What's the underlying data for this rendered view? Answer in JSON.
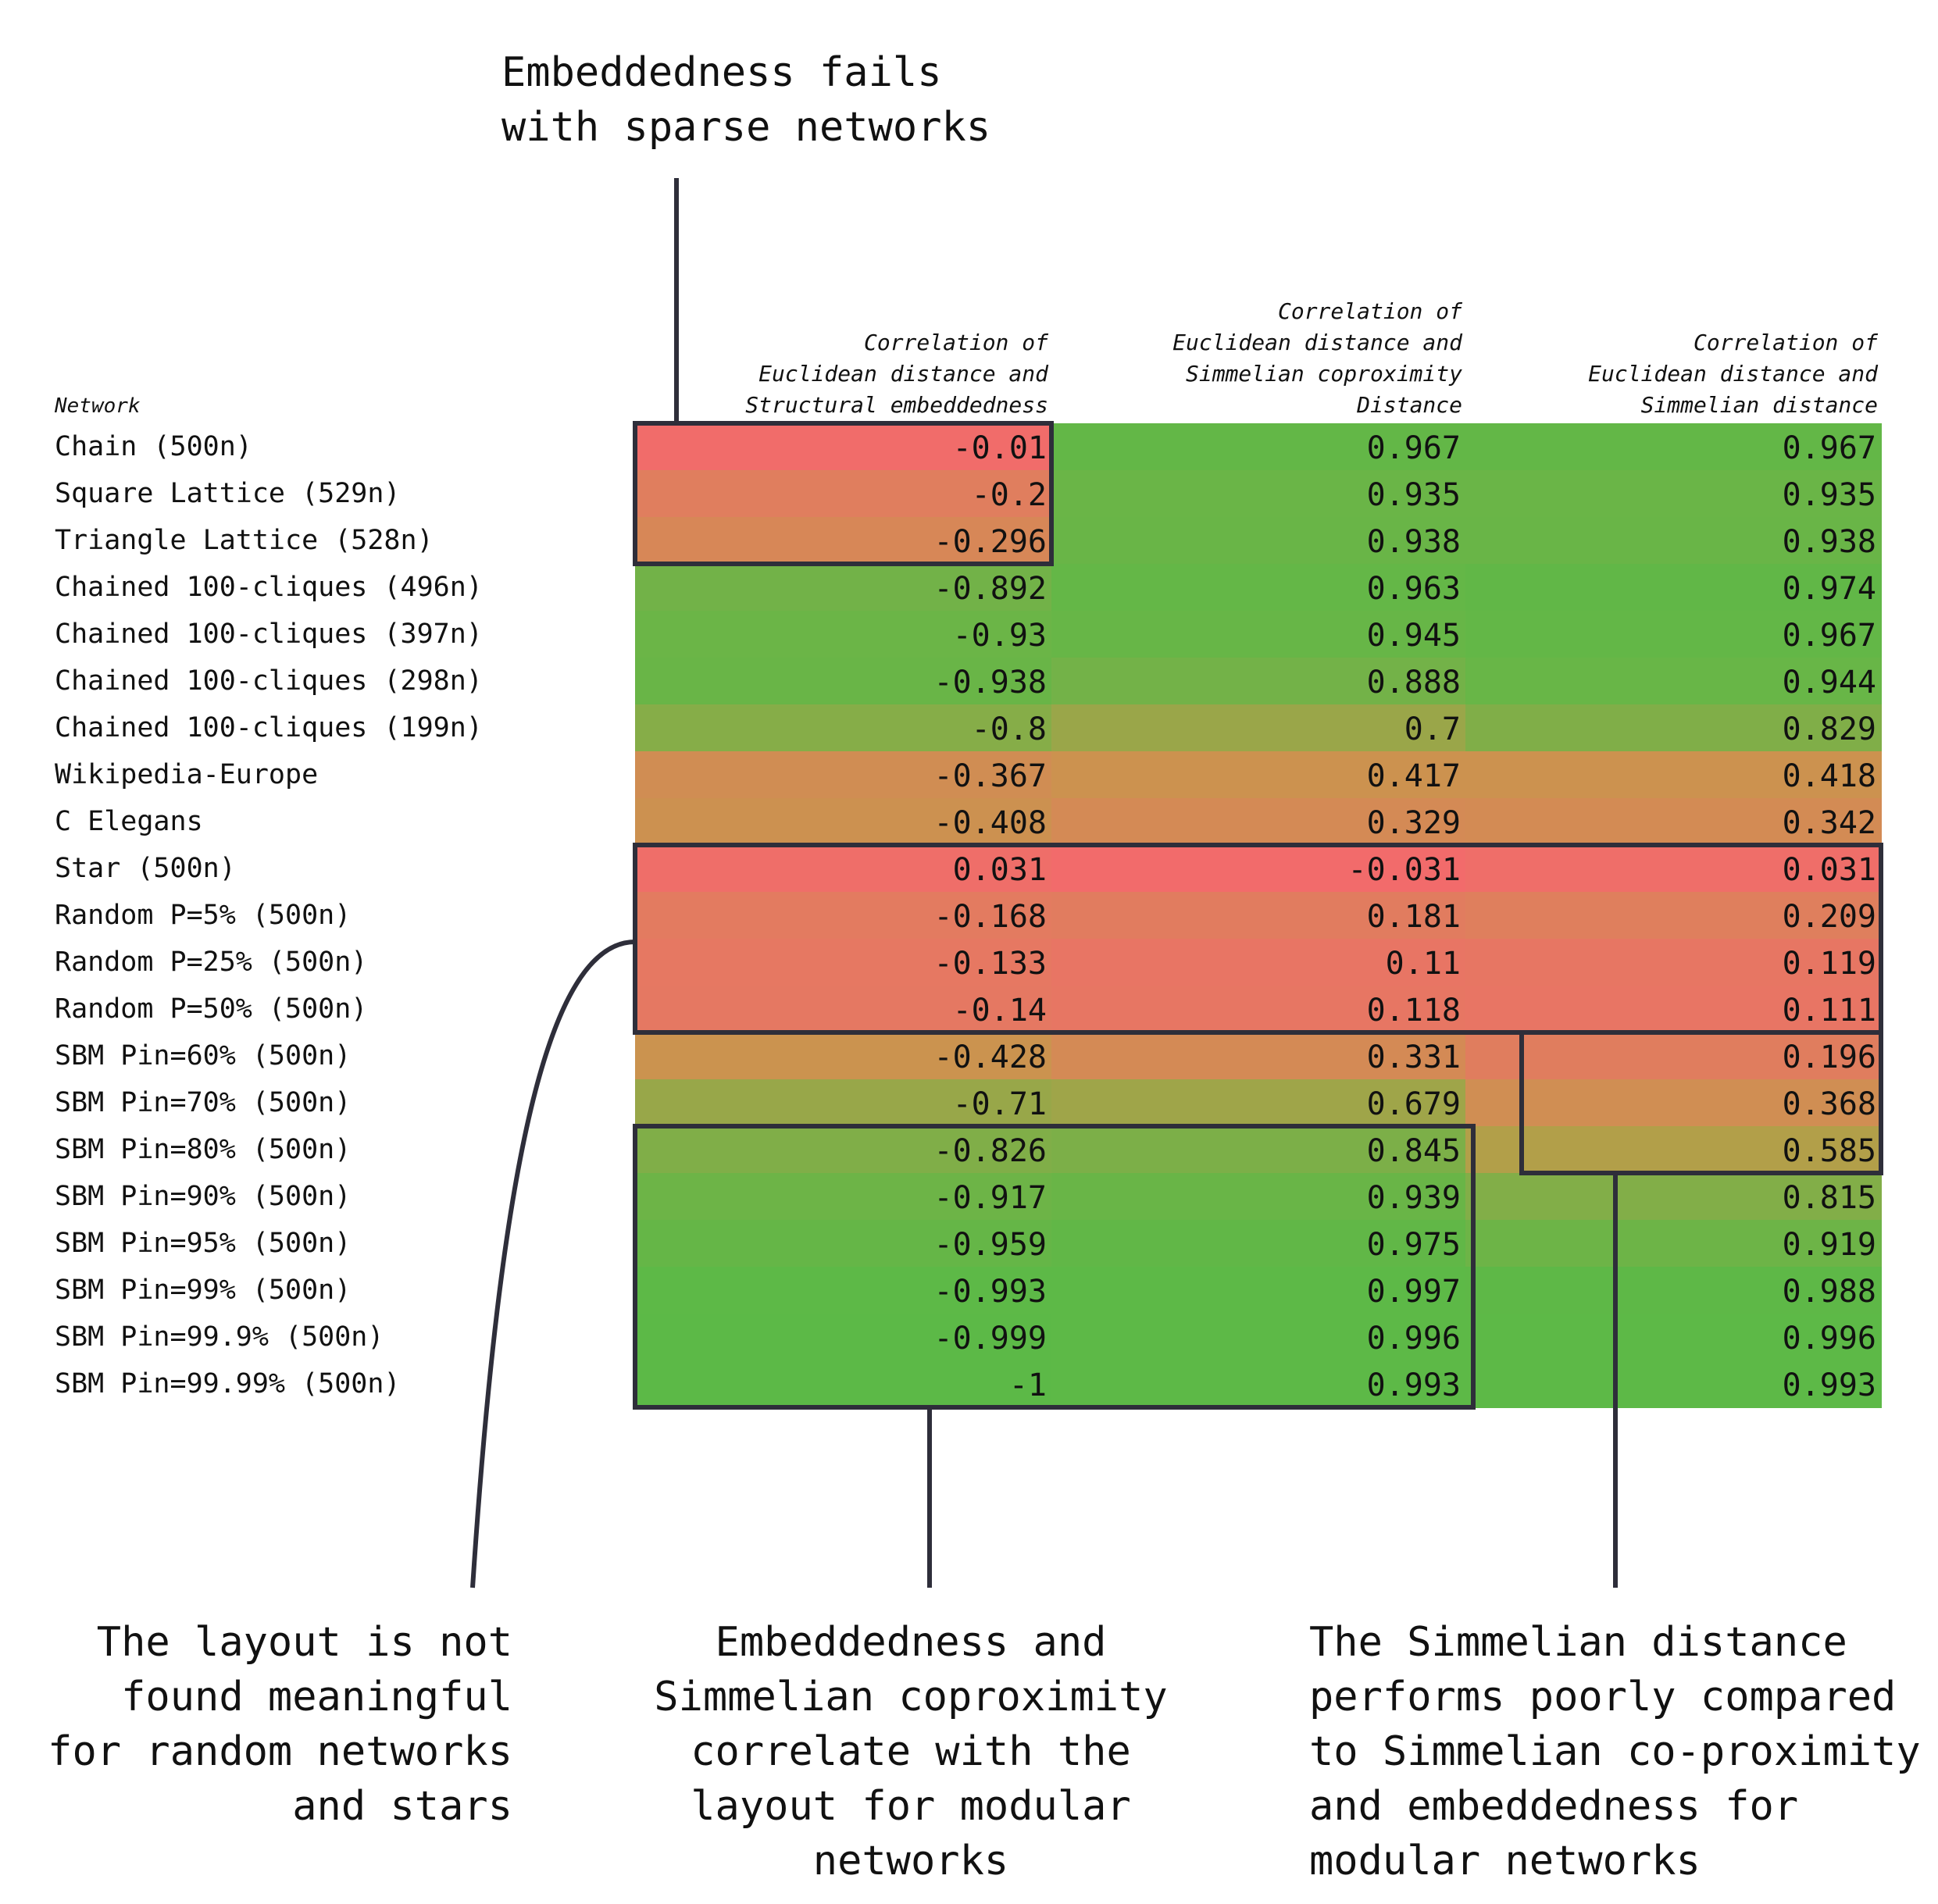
{
  "annotations": {
    "top": [
      "Embeddedness fails",
      "with sparse networks"
    ],
    "bottom_left": [
      "The layout is not",
      "found meaningful",
      "for random networks",
      "and stars"
    ],
    "bottom_center": [
      "Embeddedness and",
      "Simmelian coproximity",
      "correlate with the",
      "layout for modular",
      "networks"
    ],
    "bottom_right": [
      "The Simmelian distance",
      "performs poorly compared",
      "to Simmelian co-proximity",
      "and embeddedness for",
      "modular networks"
    ]
  },
  "chart_data": {
    "type": "table",
    "row_header": "Network",
    "columns": [
      [
        "Correlation of",
        "Euclidean distance and",
        "Structural embeddedness"
      ],
      [
        "Correlation of",
        "Euclidean distance and",
        "Simmelian coproximity",
        "Distance"
      ],
      [
        "Correlation of",
        "Euclidean distance and",
        "Simmelian distance"
      ]
    ],
    "color_scale": {
      "low": "#f26b6b",
      "mid": "#c49a4a",
      "high": "#5cb947"
    },
    "rows": [
      {
        "label": "Chain (500n)",
        "values": [
          "-0.01",
          "0.967",
          "0.967"
        ]
      },
      {
        "label": "Square Lattice (529n)",
        "values": [
          "-0.2",
          "0.935",
          "0.935"
        ]
      },
      {
        "label": "Triangle Lattice (528n)",
        "values": [
          "-0.296",
          "0.938",
          "0.938"
        ]
      },
      {
        "label": "Chained 100-cliques (496n)",
        "values": [
          "-0.892",
          "0.963",
          "0.974"
        ]
      },
      {
        "label": "Chained 100-cliques (397n)",
        "values": [
          "-0.93",
          "0.945",
          "0.967"
        ]
      },
      {
        "label": "Chained 100-cliques (298n)",
        "values": [
          "-0.938",
          "0.888",
          "0.944"
        ]
      },
      {
        "label": "Chained 100-cliques (199n)",
        "values": [
          "-0.8",
          "0.7",
          "0.829"
        ]
      },
      {
        "label": "Wikipedia-Europe",
        "values": [
          "-0.367",
          "0.417",
          "0.418"
        ]
      },
      {
        "label": "C Elegans",
        "values": [
          "-0.408",
          "0.329",
          "0.342"
        ]
      },
      {
        "label": "Star (500n)",
        "values": [
          "0.031",
          "-0.031",
          "0.031"
        ]
      },
      {
        "label": "Random P=5% (500n)",
        "values": [
          "-0.168",
          "0.181",
          "0.209"
        ]
      },
      {
        "label": "Random P=25% (500n)",
        "values": [
          "-0.133",
          "0.11",
          "0.119"
        ]
      },
      {
        "label": "Random P=50% (500n)",
        "values": [
          "-0.14",
          "0.118",
          "0.111"
        ]
      },
      {
        "label": "SBM Pin=60% (500n)",
        "values": [
          "-0.428",
          "0.331",
          "0.196"
        ]
      },
      {
        "label": "SBM Pin=70% (500n)",
        "values": [
          "-0.71",
          "0.679",
          "0.368"
        ]
      },
      {
        "label": "SBM Pin=80% (500n)",
        "values": [
          "-0.826",
          "0.845",
          "0.585"
        ]
      },
      {
        "label": "SBM Pin=90% (500n)",
        "values": [
          "-0.917",
          "0.939",
          "0.815"
        ]
      },
      {
        "label": "SBM Pin=95% (500n)",
        "values": [
          "-0.959",
          "0.975",
          "0.919"
        ]
      },
      {
        "label": "SBM Pin=99% (500n)",
        "values": [
          "-0.993",
          "0.997",
          "0.988"
        ]
      },
      {
        "label": "SBM Pin=99.9% (500n)",
        "values": [
          "-0.999",
          "0.996",
          "0.996"
        ]
      },
      {
        "label": "SBM Pin=99.99% (500n)",
        "values": [
          "-1",
          "0.993",
          "0.993"
        ]
      }
    ],
    "highlights": [
      {
        "column_from": 0,
        "column_to": 0,
        "row_from": 0,
        "row_to": 2
      },
      {
        "column_from": 0,
        "column_to": 2,
        "row_from": 9,
        "row_to": 12
      },
      {
        "column_from": 0,
        "column_to": 1,
        "row_from": 15,
        "row_to": 20
      },
      {
        "column_from": 2,
        "column_to": 2,
        "row_from": 13,
        "row_to": 15
      }
    ]
  }
}
